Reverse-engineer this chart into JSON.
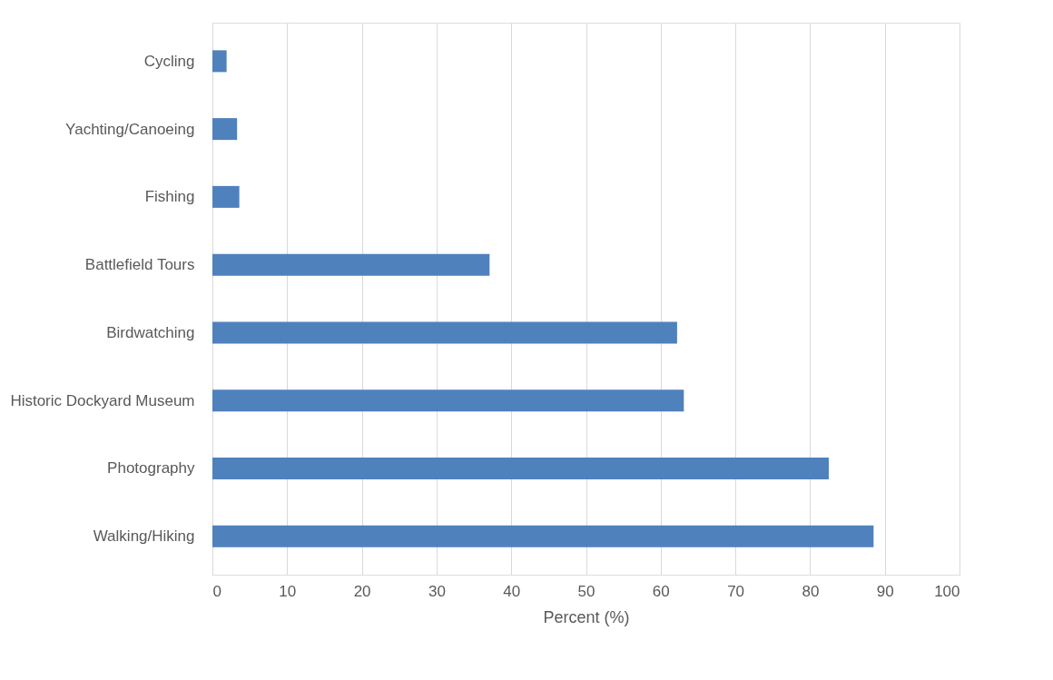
{
  "chart_data": {
    "type": "bar",
    "orientation": "horizontal",
    "xlabel": "Percent (%)",
    "categories": [
      "Cycling",
      "Yachting/Canoeing",
      "Fishing",
      "Battlefield Tours",
      "Birdwatching",
      "Historic Dockyard Museum",
      "Photography",
      "Walking/Hiking"
    ],
    "values": [
      1.9,
      3.3,
      3.6,
      37.1,
      62.2,
      63.1,
      82.5,
      88.5
    ],
    "color": "#4f81bd",
    "xlim": [
      0,
      100
    ],
    "xticks": [
      0,
      10,
      20,
      30,
      40,
      50,
      60,
      70,
      80,
      90,
      100
    ],
    "grid": "x"
  }
}
